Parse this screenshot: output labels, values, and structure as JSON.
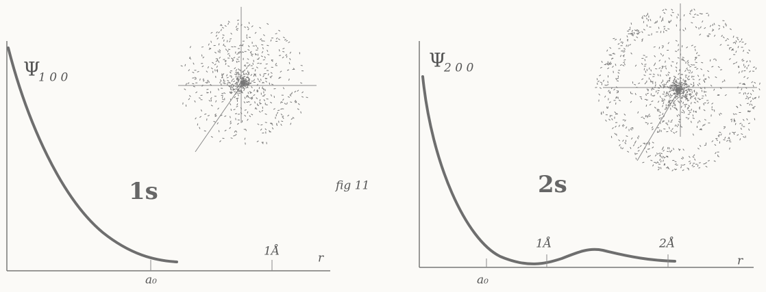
{
  "panels": [
    {
      "psi": "Ψ",
      "psi_subscript": "1 0 0",
      "orbital": "1s",
      "radius_label": "a₀",
      "distance_label": "1Å",
      "axis_label": "r"
    },
    {
      "psi": "Ψ",
      "psi_subscript": "2 0 0",
      "orbital": "2s",
      "radius_label": "a₀",
      "distance_label": "1Å",
      "distance_label_2": "2Å",
      "axis_label": "r"
    }
  ],
  "figure_label": "fig 11"
}
